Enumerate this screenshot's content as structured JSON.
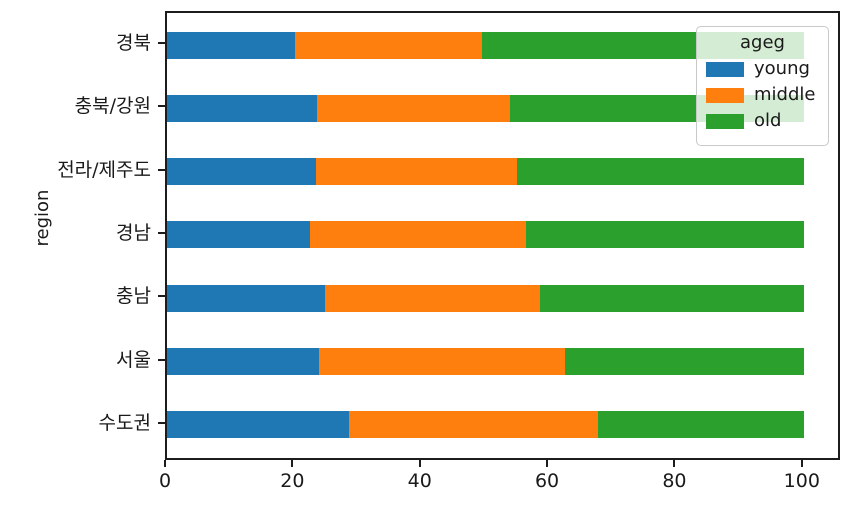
{
  "figure": {
    "background": "#ffffff",
    "spine_color": "#1c1c1c"
  },
  "chart_data": {
    "type": "bar",
    "orientation": "horizontal",
    "stacked": true,
    "title": "",
    "xlabel": "",
    "ylabel": "region",
    "xlim": [
      0,
      106
    ],
    "xticks": [
      0,
      20,
      40,
      60,
      80,
      100
    ],
    "grid": false,
    "legend": {
      "title": "ageg",
      "position": "upper-right",
      "entries": [
        "young",
        "middle",
        "old"
      ]
    },
    "categories": [
      "경북",
      "충북/강원",
      "전라/제주도",
      "경남",
      "충남",
      "서울",
      "수도권"
    ],
    "series": [
      {
        "name": "young",
        "color": "#1f77b4",
        "values": [
          20.1,
          23.5,
          23.4,
          22.5,
          24.8,
          23.9,
          28.6
        ]
      },
      {
        "name": "middle",
        "color": "#ff7f0e",
        "values": [
          29.3,
          30.3,
          31.5,
          33.9,
          33.8,
          38.6,
          39.1
        ]
      },
      {
        "name": "old",
        "color": "#2ca02c",
        "values": [
          50.6,
          46.2,
          45.1,
          43.6,
          41.4,
          37.5,
          32.3
        ]
      }
    ]
  }
}
